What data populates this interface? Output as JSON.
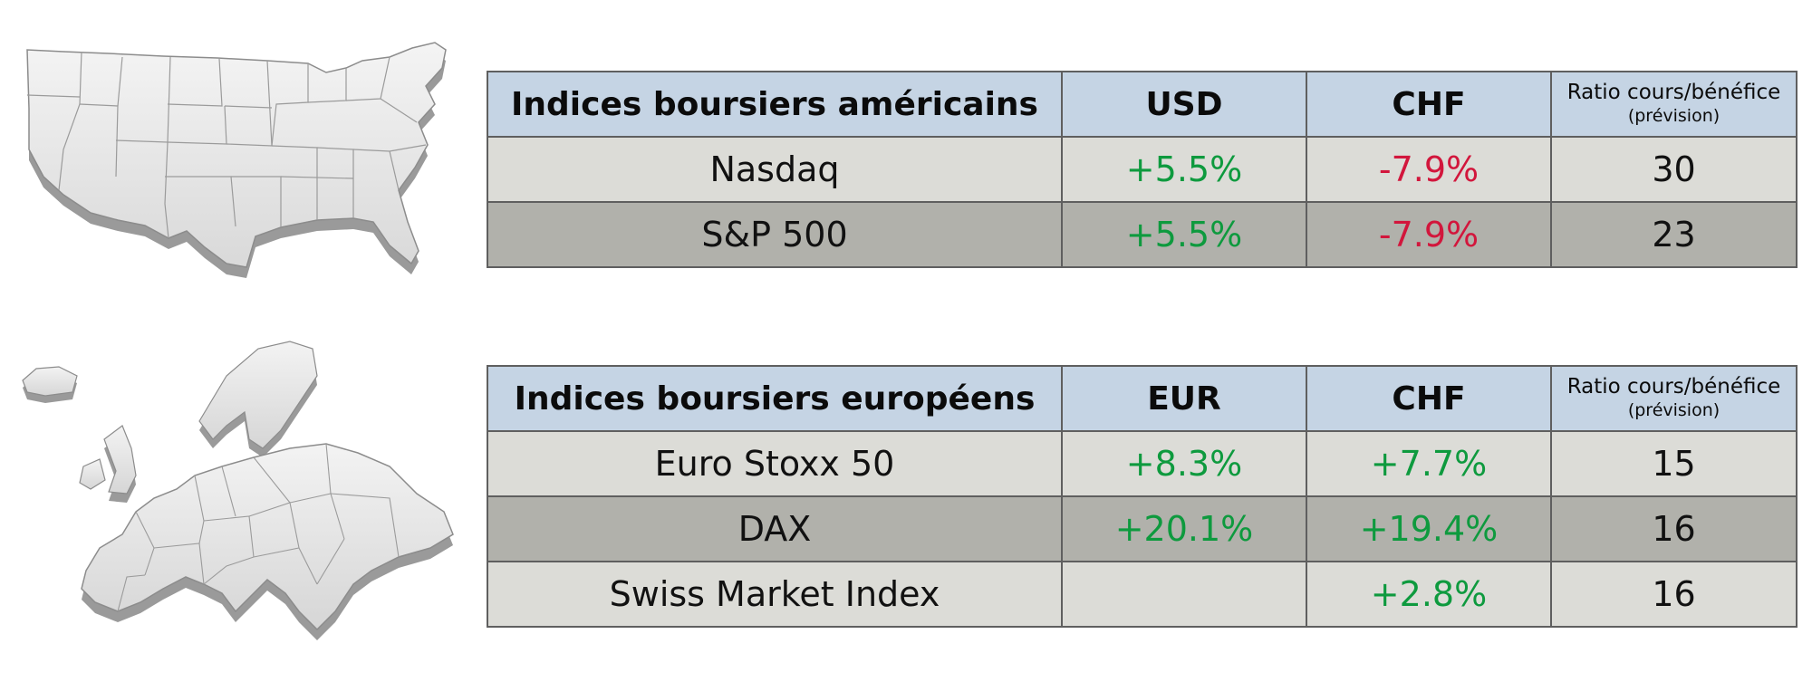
{
  "us_table": {
    "headers": [
      "Indices boursiers américains",
      "USD",
      "CHF"
    ],
    "ratio_header": "Ratio cours/bénéfice",
    "ratio_sub": "(prévision)",
    "rows": [
      {
        "name": "Nasdaq",
        "local": "+5.5%",
        "chf": "-7.9%",
        "pe": "30"
      },
      {
        "name": "S&P 500",
        "local": "+5.5%",
        "chf": "-7.9%",
        "pe": "23"
      }
    ]
  },
  "eu_table": {
    "headers": [
      "Indices boursiers européens",
      "EUR",
      "CHF"
    ],
    "ratio_header": "Ratio cours/bénéfice",
    "ratio_sub": "(prévision)",
    "rows": [
      {
        "name": "Euro Stoxx 50",
        "local": "+8.3%",
        "chf": "+7.7%",
        "pe": "15"
      },
      {
        "name": "DAX",
        "local": "+20.1%",
        "chf": "+19.4%",
        "pe": "16"
      },
      {
        "name": "Swiss Market Index",
        "local": "",
        "chf": "+2.8%",
        "pe": "16"
      }
    ]
  },
  "images": {
    "us_map": "usa-3d-map-icon",
    "eu_map": "europe-3d-map-icon"
  },
  "colors": {
    "header_bg": "#c5d4e4",
    "row_light": "#dcdcd7",
    "row_dark": "#b1b1ab",
    "positive": "#0e9a3e",
    "negative": "#d2163c"
  }
}
